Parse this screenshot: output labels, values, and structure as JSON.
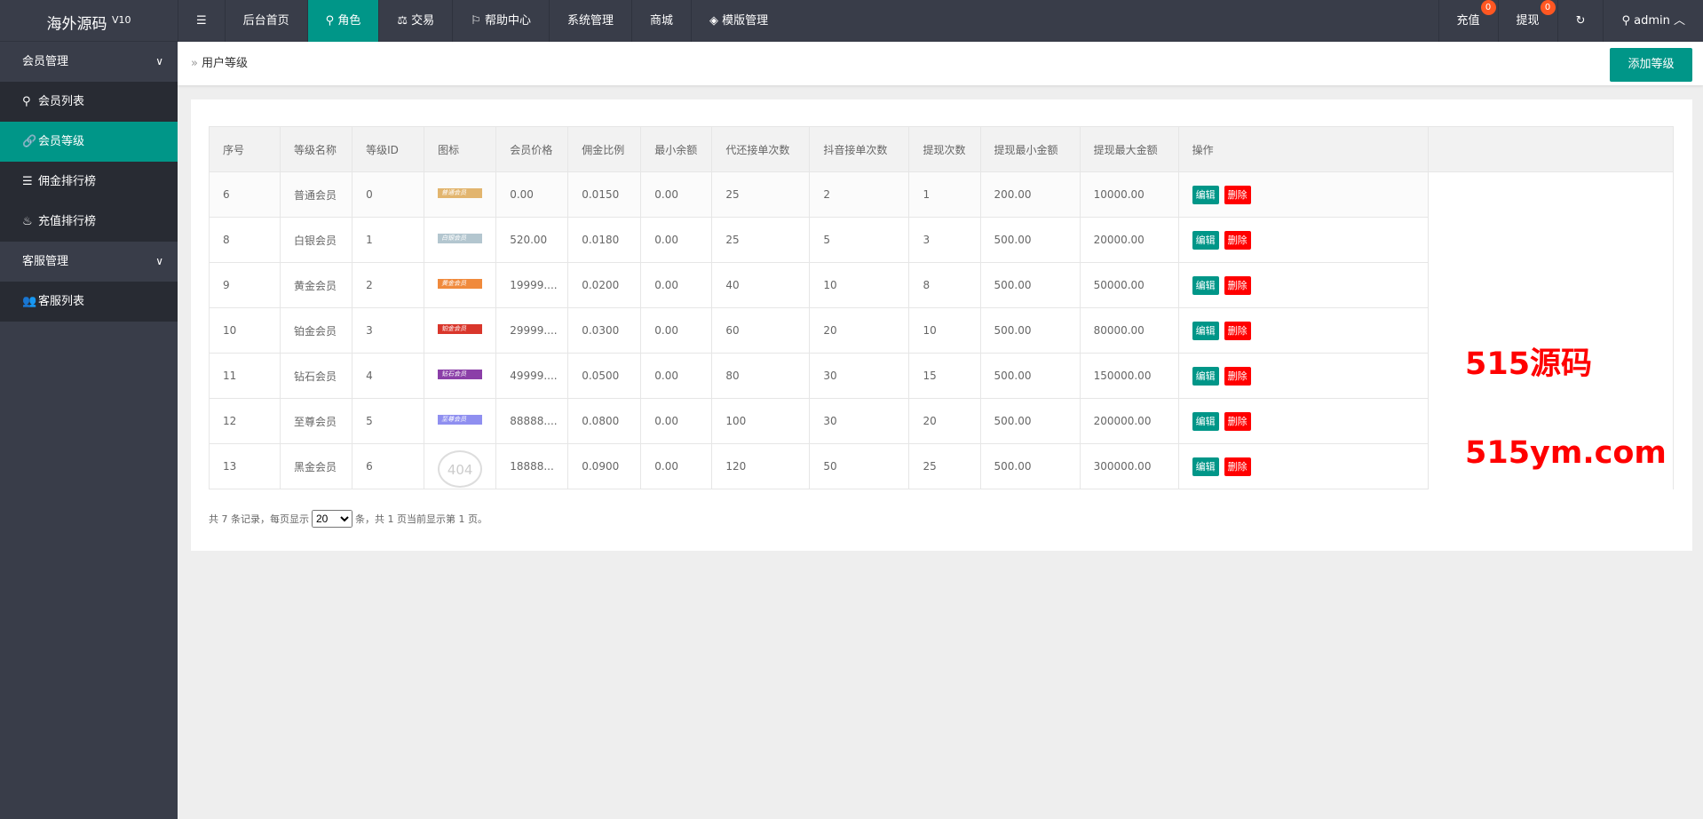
{
  "app": {
    "title": "海外源码",
    "version": "V10"
  },
  "topnav": {
    "items": [
      {
        "label": "",
        "icon": "menu-fold-icon"
      },
      {
        "label": "后台首页"
      },
      {
        "label": "角色",
        "icon": "user-icon",
        "active": true
      },
      {
        "label": "交易",
        "icon": "scale-icon"
      },
      {
        "label": "帮助中心",
        "icon": "flag-icon"
      },
      {
        "label": "系统管理"
      },
      {
        "label": "商城"
      },
      {
        "label": "模版管理",
        "icon": "layers-icon"
      }
    ],
    "right": [
      {
        "label": "充值",
        "badge": "0"
      },
      {
        "label": "提现",
        "badge": "0"
      },
      {
        "label": "↻",
        "icon": "refresh-icon"
      },
      {
        "label": "admin",
        "icon": "user-icon"
      }
    ]
  },
  "sidebar": {
    "groups": [
      {
        "label": "会员管理",
        "items": [
          {
            "label": "会员列表",
            "icon": "user-icon"
          },
          {
            "label": "会员等级",
            "icon": "link-icon",
            "active": true
          },
          {
            "label": "佣金排行榜",
            "icon": "list-icon"
          },
          {
            "label": "充值排行榜",
            "icon": "fire-icon"
          }
        ]
      },
      {
        "label": "客服管理",
        "items": [
          {
            "label": "客服列表",
            "icon": "users-icon"
          }
        ]
      }
    ]
  },
  "breadcrumb": {
    "current": "用户等级"
  },
  "add_button": "添加等级",
  "table": {
    "headers": [
      "序号",
      "等级名称",
      "等级ID",
      "图标",
      "会员价格",
      "佣金比例",
      "最小余额",
      "代还接单次数",
      "抖音接单次数",
      "提现次数",
      "提现最小金额",
      "提现最大金额",
      "操作"
    ],
    "rows": [
      {
        "no": "6",
        "name": "普通会员",
        "id": "0",
        "badge": "普通会员",
        "badge_color": "#e2b56e",
        "price": "0.00",
        "ratio": "0.0150",
        "min": "0.00",
        "repay": "25",
        "douyin": "2",
        "wd": "1",
        "wdmin": "200.00",
        "wdmax": "10000.00"
      },
      {
        "no": "8",
        "name": "白银会员",
        "id": "1",
        "badge": "白银会员",
        "badge_color": "#b3c6cf",
        "price": "520.00",
        "ratio": "0.0180",
        "min": "0.00",
        "repay": "25",
        "douyin": "5",
        "wd": "3",
        "wdmin": "500.00",
        "wdmax": "20000.00"
      },
      {
        "no": "9",
        "name": "黄金会员",
        "id": "2",
        "badge": "黄金会员",
        "badge_color": "#f08a3c",
        "price": "19999....",
        "ratio": "0.0200",
        "min": "0.00",
        "repay": "40",
        "douyin": "10",
        "wd": "8",
        "wdmin": "500.00",
        "wdmax": "50000.00"
      },
      {
        "no": "10",
        "name": "铂金会员",
        "id": "3",
        "badge": "铂金会员",
        "badge_color": "#d9362b",
        "price": "29999....",
        "ratio": "0.0300",
        "min": "0.00",
        "repay": "60",
        "douyin": "20",
        "wd": "10",
        "wdmin": "500.00",
        "wdmax": "80000.00"
      },
      {
        "no": "11",
        "name": "钻石会员",
        "id": "4",
        "badge": "钻石会员",
        "badge_color": "#8b3fa8",
        "price": "49999....",
        "ratio": "0.0500",
        "min": "0.00",
        "repay": "80",
        "douyin": "30",
        "wd": "15",
        "wdmin": "500.00",
        "wdmax": "150000.00"
      },
      {
        "no": "12",
        "name": "至尊会员",
        "id": "5",
        "badge": "至尊会员",
        "badge_color": "#8f8ff0",
        "price": "88888....",
        "ratio": "0.0800",
        "min": "0.00",
        "repay": "100",
        "douyin": "30",
        "wd": "20",
        "wdmin": "500.00",
        "wdmax": "200000.00"
      },
      {
        "no": "13",
        "name": "黑金会员",
        "id": "6",
        "badge": "404",
        "badge_color": "",
        "price": "18888...",
        "ratio": "0.0900",
        "min": "0.00",
        "repay": "120",
        "douyin": "50",
        "wd": "25",
        "wdmin": "500.00",
        "wdmax": "300000.00"
      }
    ],
    "edit_label": "编辑",
    "delete_label": "删除"
  },
  "pagination": {
    "prefix": "共 7 条记录，每页显示",
    "page_size": "20",
    "suffix": "条，共 1 页当前显示第 1 页。"
  },
  "watermark": {
    "line1": "515源码",
    "line2": "515ym.com"
  },
  "colors": {
    "accent": "#009688",
    "danger": "#ff0000",
    "topbar": "#393d49",
    "badge": "#ff5722"
  }
}
